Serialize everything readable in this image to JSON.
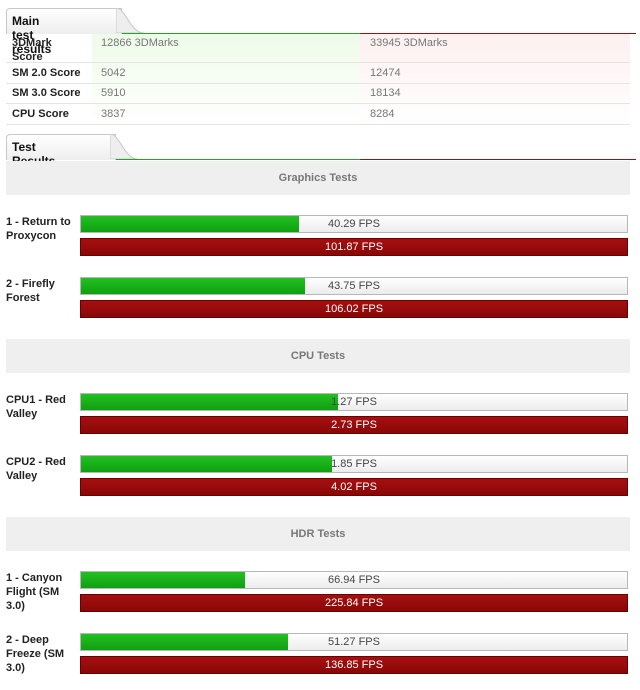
{
  "main_tab": {
    "label": "Main test results"
  },
  "results_tab": {
    "label": "Test Results"
  },
  "colors": {
    "system_a": "#1fa81f",
    "system_b": "#9b1212"
  },
  "main_scores": [
    {
      "label": "3DMark Score",
      "a": "12866 3DMarks",
      "b": "33945 3DMarks"
    },
    {
      "label": "SM 2.0 Score",
      "a": "5042",
      "b": "12474"
    },
    {
      "label": "SM 3.0 Score",
      "a": "5910",
      "b": "18134"
    },
    {
      "label": "CPU Score",
      "a": "3837",
      "b": "8284"
    }
  ],
  "sections": [
    {
      "title": "Graphics Tests"
    },
    {
      "title": "CPU Tests"
    },
    {
      "title": "HDR Tests"
    }
  ],
  "chart_data": {
    "type": "bar",
    "orientation": "horizontal",
    "unit": "FPS",
    "categories": [
      "1 - Return to Proxycon",
      "2 - Firefly Forest",
      "CPU1 - Red Valley",
      "CPU2 - Red Valley",
      "1 - Canyon Flight (SM 3.0)",
      "2 - Deep Freeze (SM 3.0)"
    ],
    "series": [
      {
        "values": [
          40.29,
          43.75,
          1.27,
          1.85,
          66.94,
          51.27
        ],
        "labels": [
          "40.29 FPS",
          "43.75 FPS",
          "1.27 FPS",
          "1.85 FPS",
          "66.94 FPS",
          "51.27 FPS"
        ],
        "fill_fraction": [
          0.4,
          0.41,
          0.47,
          0.46,
          0.3,
          0.38
        ]
      },
      {
        "values": [
          101.87,
          106.02,
          2.73,
          4.02,
          225.84,
          136.85
        ],
        "labels": [
          "101.87 FPS",
          "106.02 FPS",
          "2.73 FPS",
          "4.02 FPS",
          "225.84 FPS",
          "136.85 FPS"
        ],
        "fill_fraction": [
          1,
          1,
          1,
          1,
          1,
          1
        ]
      }
    ]
  }
}
